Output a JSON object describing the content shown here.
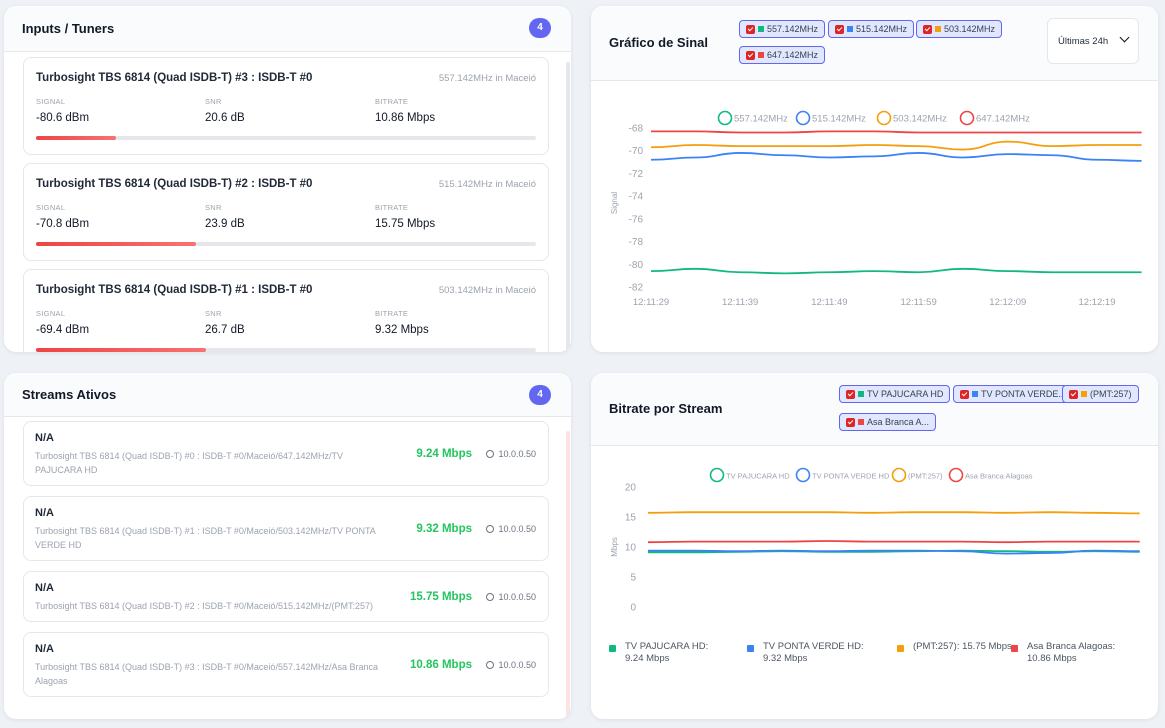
{
  "tuners": {
    "title": "Inputs / Tuners",
    "count": "4",
    "labels": {
      "signal": "SIGNAL",
      "snr": "SNR",
      "bitrate": "BITRATE"
    },
    "items": [
      {
        "name": "Turbosight TBS 6814 (Quad ISDB-T) #3 : ISDB-T #0",
        "freq": "557.142MHz in Maceió",
        "signal": "-80.6 dBm",
        "snr": "20.6 dB",
        "bitrate": "10.86 Mbps",
        "strength": 16
      },
      {
        "name": "Turbosight TBS 6814 (Quad ISDB-T) #2 : ISDB-T #0",
        "freq": "515.142MHz in Maceió",
        "signal": "-70.8 dBm",
        "snr": "23.9 dB",
        "bitrate": "15.75 Mbps",
        "strength": 32
      },
      {
        "name": "Turbosight TBS 6814 (Quad ISDB-T) #1 : ISDB-T #0",
        "freq": "503.142MHz in Maceió",
        "signal": "-69.4 dBm",
        "snr": "26.7 dB",
        "bitrate": "9.32 Mbps",
        "strength": 34
      }
    ]
  },
  "streams": {
    "title": "Streams Ativos",
    "count": "4",
    "items": [
      {
        "title": "N/A",
        "desc": "Turbosight TBS 6814 (Quad ISDB-T) #0 : ISDB-T #0/Maceió/647.142MHz/TV PAJUCARA HD",
        "bitrate": "9.24 Mbps",
        "ip": "10.0.0.50"
      },
      {
        "title": "N/A",
        "desc": "Turbosight TBS 6814 (Quad ISDB-T) #1 : ISDB-T #0/Maceió/503.142MHz/TV PONTA VERDE HD",
        "bitrate": "9.32 Mbps",
        "ip": "10.0.0.50"
      },
      {
        "title": "N/A",
        "desc": "Turbosight TBS 6814 (Quad ISDB-T) #2 : ISDB-T #0/Maceió/515.142MHz/(PMT:257)",
        "bitrate": "15.75 Mbps",
        "ip": "10.0.0.50"
      },
      {
        "title": "N/A",
        "desc": "Turbosight TBS 6814 (Quad ISDB-T) #3 : ISDB-T #0/Maceió/557.142MHz/Asa Branca Alagoas",
        "bitrate": "10.86 Mbps",
        "ip": "10.0.0.50"
      }
    ]
  },
  "chart_data": [
    {
      "type": "line",
      "title": "Gráfico de Sinal",
      "range": "Últimas 24h",
      "ylabel": "Signal",
      "x": [
        "12:11:29",
        null,
        "12:11:39",
        null,
        "12:11:49",
        null,
        "12:11:59",
        null,
        "12:12:09",
        null,
        "12:12:19",
        null
      ],
      "ylim": [
        -82,
        -67
      ],
      "yticks": [
        -68,
        -70,
        -72,
        -74,
        -76,
        -78,
        -80,
        -82
      ],
      "grid": false,
      "series": [
        {
          "name": "557.142MHz",
          "color": "#10b981",
          "values": [
            -80.6,
            -80.4,
            -80.7,
            -80.8,
            -80.7,
            -80.6,
            -80.7,
            -80.4,
            -80.6,
            -80.7,
            -80.7,
            -80.7
          ]
        },
        {
          "name": "515.142MHz",
          "color": "#3b82f6",
          "values": [
            -70.8,
            -70.6,
            -70.2,
            -70.4,
            -70.6,
            -70.5,
            -70.2,
            -70.6,
            -70.3,
            -70.4,
            -70.8,
            -70.9
          ]
        },
        {
          "name": "503.142MHz",
          "color": "#f59e0b",
          "values": [
            -69.7,
            -69.5,
            -69.6,
            -69.6,
            -69.6,
            -69.5,
            -69.6,
            -69.9,
            -69.2,
            -69.6,
            -69.5,
            -69.5
          ]
        },
        {
          "name": "647.142MHz",
          "color": "#ef4444",
          "values": [
            -68.3,
            -68.3,
            -68.4,
            -68.4,
            -68.3,
            -68.3,
            -68.4,
            -68.4,
            -68.4,
            -68.4,
            -68.4,
            -68.4
          ]
        }
      ]
    },
    {
      "type": "line",
      "title": "Bitrate por Stream",
      "ylabel": "Mbps",
      "toggles": [
        "TV PAJUCARA HD",
        "TV PONTA VERDE...",
        "(PMT:257)",
        "Asa Branca A..."
      ],
      "ylim": [
        0,
        20
      ],
      "yticks": [
        20,
        15,
        10,
        5,
        0
      ],
      "grid": false,
      "series": [
        {
          "name": "TV PAJUCARA HD",
          "color": "#10b981",
          "values": [
            9.1,
            9.1,
            9.2,
            9.3,
            9.2,
            9.2,
            9.3,
            9.4,
            9.3,
            9.2,
            9.3,
            9.2
          ]
        },
        {
          "name": "TV PONTA VERDE HD",
          "color": "#3b82f6",
          "values": [
            9.4,
            9.4,
            9.3,
            9.4,
            9.3,
            9.4,
            9.4,
            9.3,
            8.9,
            9.0,
            9.4,
            9.3
          ]
        },
        {
          "name": "(PMT:257)",
          "color": "#f59e0b",
          "values": [
            15.7,
            15.8,
            15.8,
            15.8,
            15.8,
            15.7,
            15.8,
            15.8,
            15.7,
            15.8,
            15.7,
            15.6
          ]
        },
        {
          "name": "Asa Branca Alagoas",
          "color": "#ef4444",
          "values": [
            10.8,
            10.9,
            10.9,
            10.9,
            11.0,
            10.9,
            10.9,
            10.9,
            10.8,
            10.9,
            10.9,
            10.9
          ]
        }
      ],
      "summary": [
        "TV PAJUCARA HD: 9.24 Mbps",
        "TV PONTA VERDE HD: 9.32 Mbps",
        "(PMT:257): 15.75 Mbps",
        "Asa Branca Alagoas: 10.86 Mbps"
      ]
    }
  ]
}
